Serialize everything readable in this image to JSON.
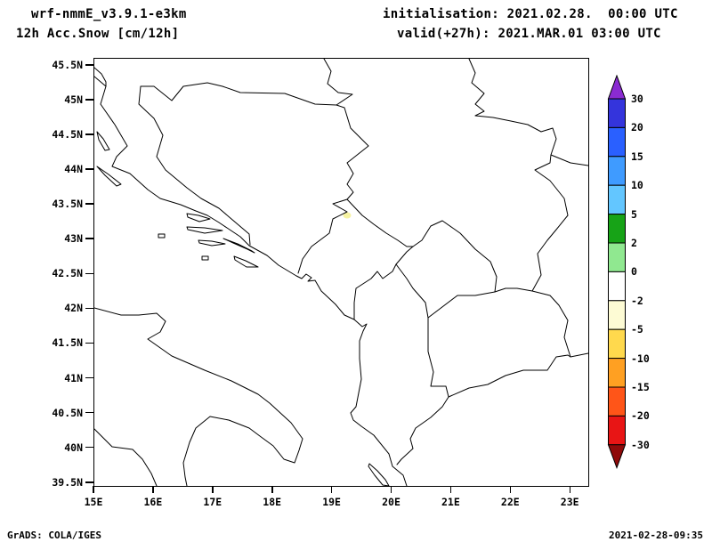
{
  "header": {
    "model_title": "wrf-nmmE_v3.9.1-e3km",
    "product_title": "12h Acc.Snow [cm/12h]",
    "init_line": "initialisation: 2021.02.28.  00:00 UTC",
    "valid_line": "valid(+27h): 2021.MAR.01 03:00 UTC"
  },
  "map": {
    "y_tick_labels": [
      "45.5N",
      "45N",
      "44.5N",
      "44N",
      "43.5N",
      "43N",
      "42.5N",
      "42N",
      "41.5N",
      "41N",
      "40.5N",
      "40N",
      "39.5N"
    ],
    "x_tick_labels": [
      "15E",
      "16E",
      "17E",
      "18E",
      "19E",
      "20E",
      "21E",
      "22E",
      "23E"
    ],
    "spot": {
      "color": "#f6f3a2"
    }
  },
  "colorbar": {
    "labels": [
      "30",
      "20",
      "15",
      "10",
      "5",
      "2",
      "0",
      "-2",
      "-5",
      "-10",
      "-15",
      "-20",
      "-30"
    ],
    "colors": [
      "#8a2bd2",
      "#3434dc",
      "#2a60ff",
      "#3f9bff",
      "#63c6ff",
      "#17a317",
      "#90e890",
      "#ffffff",
      "#fdfbd4",
      "#ffd94d",
      "#ffa022",
      "#ff5518",
      "#e81515",
      "#8f0a0a"
    ]
  },
  "footer": {
    "left": "GrADS: COLA/IGES",
    "right": "2021-02-28-09:35"
  }
}
